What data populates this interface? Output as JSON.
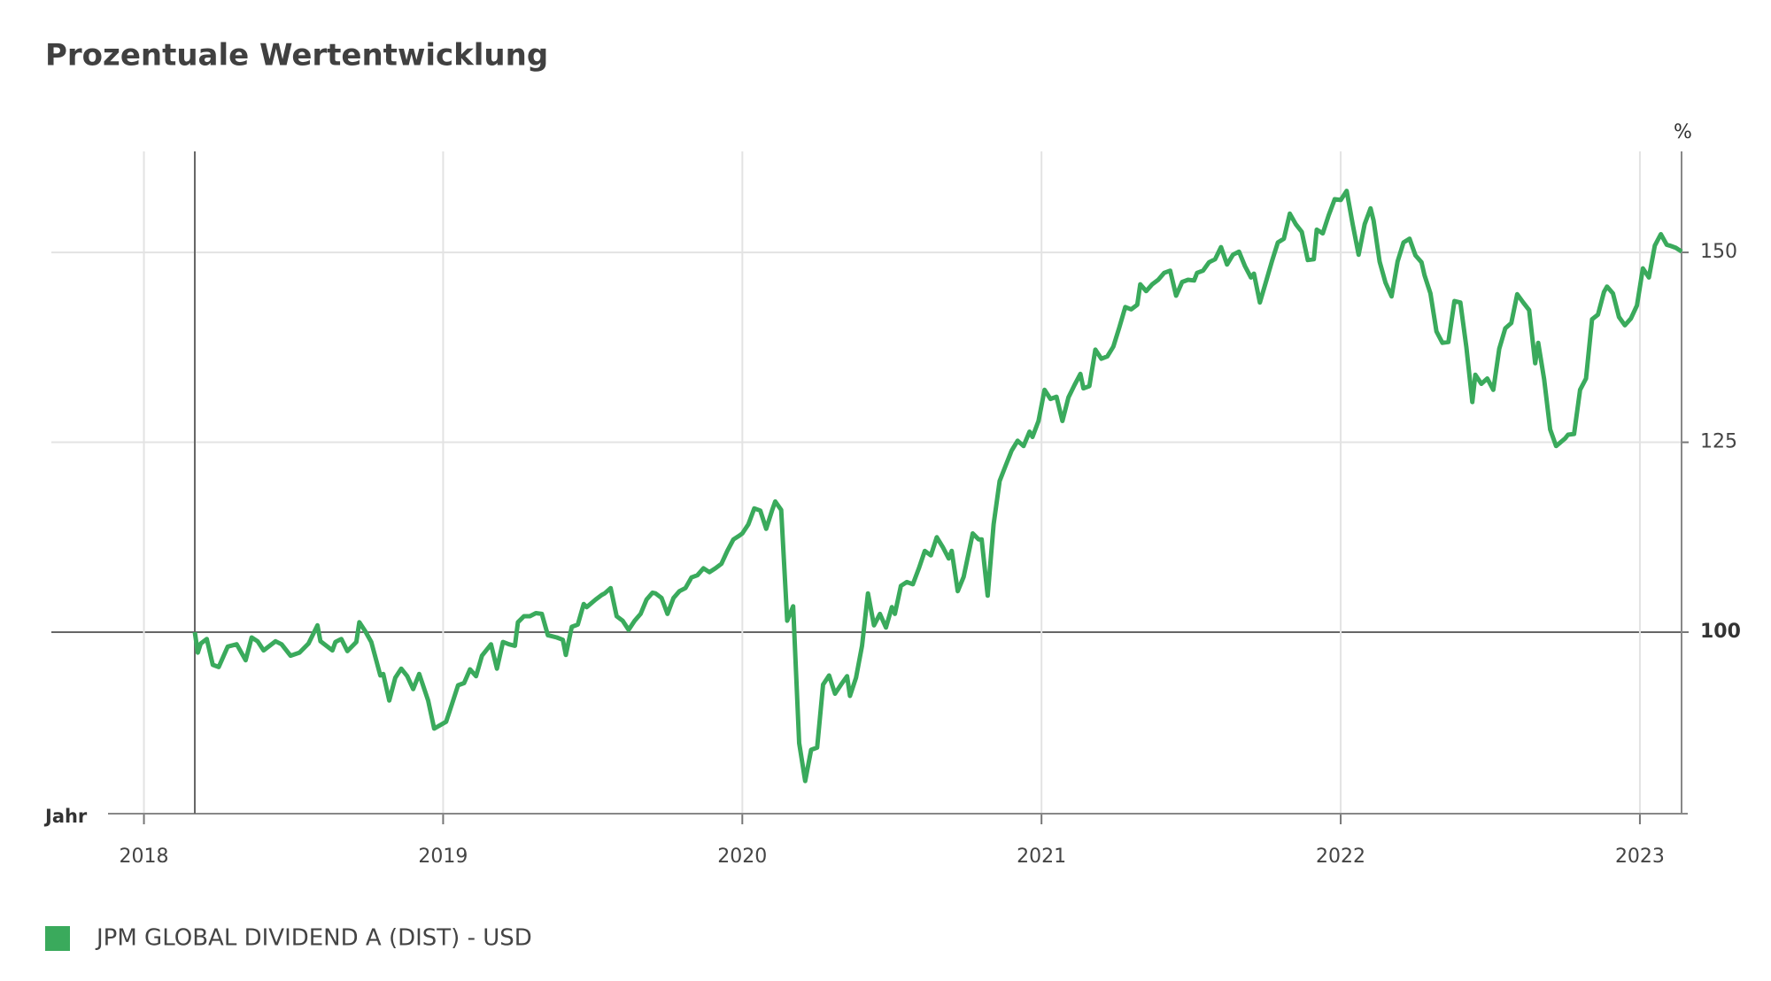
{
  "chart_data": {
    "type": "line",
    "title": "Prozentuale Wertentwicklung",
    "y_label": "%",
    "x_label": "Jahr",
    "x": [
      2018.17,
      2018.18,
      2018.19,
      2018.21,
      2018.23,
      2018.25,
      2018.28,
      2018.31,
      2018.34,
      2018.36,
      2018.38,
      2018.4,
      2018.44,
      2018.46,
      2018.49,
      2018.52,
      2018.55,
      2018.58,
      2018.59,
      2018.63,
      2018.64,
      2018.66,
      2018.68,
      2018.71,
      2018.72,
      2018.74,
      2018.76,
      2018.79,
      2018.8,
      2018.82,
      2018.84,
      2018.86,
      2018.88,
      2018.9,
      2018.92,
      2018.95,
      2018.97,
      2019.01,
      2019.03,
      2019.05,
      2019.07,
      2019.09,
      2019.11,
      2019.13,
      2019.15,
      2019.16,
      2019.18,
      2019.2,
      2019.22,
      2019.24,
      2019.25,
      2019.27,
      2019.29,
      2019.31,
      2019.33,
      2019.35,
      2019.38,
      2019.4,
      2019.41,
      2019.43,
      2019.45,
      2019.47,
      2019.48,
      2019.51,
      2019.53,
      2019.54,
      2019.56,
      2019.58,
      2019.6,
      2019.62,
      2019.64,
      2019.66,
      2019.68,
      2019.7,
      2019.71,
      2019.73,
      2019.75,
      2019.77,
      2019.79,
      2019.81,
      2019.83,
      2019.85,
      2019.87,
      2019.89,
      2019.91,
      2019.93,
      2019.95,
      2019.97,
      2019.99,
      2020.0,
      2020.02,
      2020.04,
      2020.06,
      2020.08,
      2020.1,
      2020.11,
      2020.13,
      2020.15,
      2020.17,
      2020.19,
      2020.21,
      2020.23,
      2020.25,
      2020.27,
      2020.29,
      2020.31,
      2020.33,
      2020.35,
      2020.36,
      2020.38,
      2020.4,
      2020.42,
      2020.44,
      2020.46,
      2020.48,
      2020.5,
      2020.51,
      2020.53,
      2020.55,
      2020.57,
      2020.59,
      2020.61,
      2020.63,
      2020.65,
      2020.67,
      2020.69,
      2020.7,
      2020.72,
      2020.74,
      2020.77,
      2020.79,
      2020.8,
      2020.82,
      2020.84,
      2020.86,
      2020.88,
      2020.9,
      2020.92,
      2020.94,
      2020.96,
      2020.97,
      2020.99,
      2021.01,
      2021.03,
      2021.05,
      2021.07,
      2021.09,
      2021.11,
      2021.13,
      2021.14,
      2021.16,
      2021.18,
      2021.2,
      2021.22,
      2021.24,
      2021.26,
      2021.28,
      2021.3,
      2021.32,
      2021.33,
      2021.35,
      2021.37,
      2021.39,
      2021.41,
      2021.43,
      2021.45,
      2021.47,
      2021.49,
      2021.51,
      2021.52,
      2021.54,
      2021.56,
      2021.58,
      2021.6,
      2021.62,
      2021.64,
      2021.66,
      2021.68,
      2021.7,
      2021.71,
      2021.73,
      2021.75,
      2021.77,
      2021.79,
      2021.81,
      2021.83,
      2021.85,
      2021.87,
      2021.89,
      2021.91,
      2021.92,
      2021.94,
      2021.96,
      2021.98,
      2022.0,
      2022.02,
      2022.04,
      2022.06,
      2022.08,
      2022.1,
      2022.11,
      2022.13,
      2022.15,
      2022.17,
      2022.19,
      2022.21,
      2022.23,
      2022.25,
      2022.27,
      2022.28,
      2022.3,
      2022.32,
      2022.34,
      2022.36,
      2022.38,
      2022.4,
      2022.42,
      2022.44,
      2022.45,
      2022.47,
      2022.49,
      2022.51,
      2022.53,
      2022.55,
      2022.57,
      2022.59,
      2022.61,
      2022.63,
      2022.65,
      2022.66,
      2022.68,
      2022.7,
      2022.72,
      2022.75,
      2022.76,
      2022.78,
      2022.8,
      2022.82,
      2022.84,
      2022.86,
      2022.88,
      2022.89,
      2022.91,
      2022.93,
      2022.95,
      2022.97,
      2022.99,
      2023.01,
      2023.03,
      2023.05,
      2023.07,
      2023.09,
      2023.1,
      2023.12,
      2023.14
    ],
    "series": [
      {
        "name": "JPM GLOBAL DIVIDEND A (DIST) - USD",
        "color": "#3aaa5c",
        "values": [
          100,
          97.3,
          98.5,
          99.1,
          95.7,
          95.4,
          98.1,
          98.4,
          96.3,
          99.3,
          98.8,
          97.6,
          98.8,
          98.4,
          96.9,
          97.3,
          98.5,
          100.9,
          98.8,
          97.6,
          98.7,
          99.1,
          97.5,
          98.7,
          101.3,
          100.1,
          98.7,
          94.3,
          94.5,
          91.0,
          94.0,
          95.2,
          94.2,
          92.5,
          94.5,
          91.0,
          87.3,
          88.2,
          90.6,
          93.0,
          93.3,
          95.1,
          94.2,
          96.9,
          97.9,
          98.4,
          95.2,
          98.7,
          98.4,
          98.2,
          101.3,
          102.1,
          102.1,
          102.5,
          102.4,
          99.6,
          99.3,
          99.0,
          97.0,
          100.7,
          101.0,
          103.7,
          103.3,
          104.3,
          104.9,
          105.1,
          105.8,
          102.1,
          101.5,
          100.3,
          101.5,
          102.4,
          104.3,
          105.2,
          105.1,
          104.5,
          102.4,
          104.5,
          105.4,
          105.8,
          107.2,
          107.5,
          108.4,
          107.9,
          108.4,
          109.0,
          110.7,
          112.2,
          112.7,
          113.0,
          114.2,
          116.3,
          116.0,
          113.6,
          116.1,
          117.2,
          116.1,
          101.5,
          103.4,
          85.4,
          80.4,
          84.5,
          84.8,
          93.1,
          94.3,
          91.9,
          93.1,
          94.2,
          91.6,
          94.0,
          98.2,
          105.1,
          100.9,
          102.4,
          100.6,
          103.3,
          102.4,
          106.1,
          106.6,
          106.3,
          108.4,
          110.7,
          110.1,
          112.5,
          111.2,
          109.7,
          110.7,
          105.4,
          107.3,
          113.0,
          112.2,
          112.2,
          104.8,
          114.2,
          119.9,
          121.9,
          123.9,
          125.2,
          124.5,
          126.4,
          125.7,
          127.8,
          131.9,
          130.7,
          131.0,
          127.8,
          130.9,
          132.5,
          134.0,
          132.1,
          132.4,
          137.2,
          136.0,
          136.3,
          137.6,
          140.1,
          142.8,
          142.5,
          143.1,
          145.8,
          144.9,
          145.8,
          146.4,
          147.3,
          147.6,
          144.3,
          146.1,
          146.4,
          146.3,
          147.3,
          147.6,
          148.7,
          149.1,
          150.7,
          148.4,
          149.7,
          150.1,
          148.2,
          146.7,
          147.2,
          143.4,
          146.1,
          148.8,
          151.3,
          151.8,
          155.1,
          153.7,
          152.7,
          149.0,
          149.1,
          153.0,
          152.5,
          154.9,
          157.0,
          156.9,
          158.1,
          153.7,
          149.7,
          153.7,
          155.8,
          154.2,
          148.8,
          146.0,
          144.2,
          148.8,
          151.3,
          151.8,
          149.6,
          148.7,
          147.0,
          144.6,
          139.6,
          138.1,
          138.2,
          143.6,
          143.4,
          137.5,
          130.3,
          133.9,
          132.7,
          133.4,
          131.9,
          137.3,
          140.0,
          140.7,
          144.5,
          143.4,
          142.4,
          135.4,
          138.1,
          133.3,
          126.7,
          124.5,
          125.5,
          126.0,
          126.1,
          131.9,
          133.4,
          141.2,
          141.8,
          144.8,
          145.5,
          144.6,
          141.5,
          140.4,
          141.3,
          143.0,
          147.9,
          146.7,
          150.9,
          152.4,
          151.0,
          150.9,
          150.6,
          150.1
        ]
      }
    ],
    "xlim": [
      2017.88,
      2023.16
    ],
    "ylim": [
      76.1,
      163.3
    ],
    "xticks": [
      2018,
      2019,
      2020,
      2021,
      2022,
      2023
    ],
    "yticks": [
      100,
      125,
      150
    ],
    "baseline": 100,
    "grid": true
  }
}
